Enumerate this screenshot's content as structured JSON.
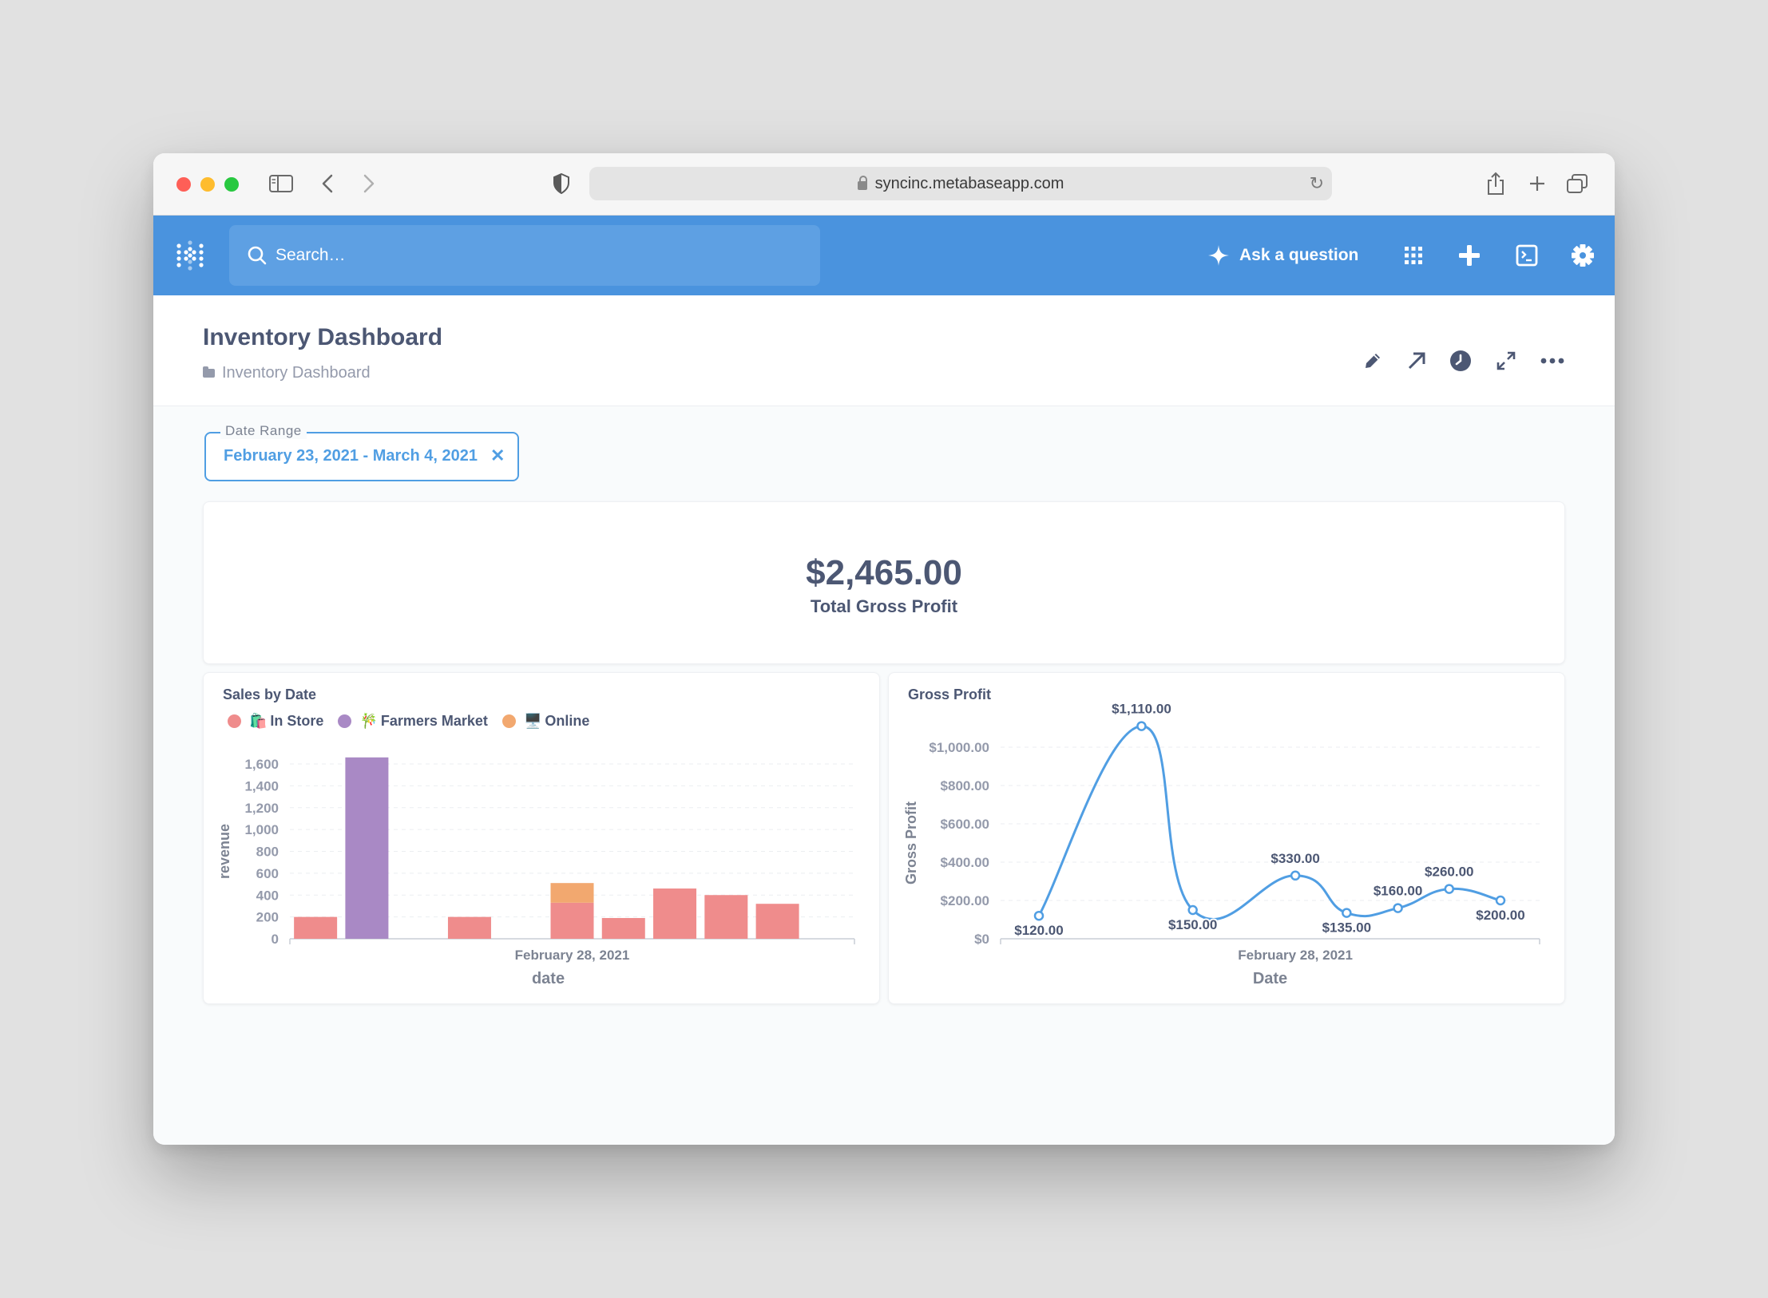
{
  "browser": {
    "url": "syncinc.metabaseapp.com",
    "icons": [
      "sidebar-icon",
      "back-icon",
      "forward-icon",
      "shield-icon",
      "lock-icon",
      "reload-icon",
      "share-icon",
      "new-tab-icon",
      "tabs-icon"
    ]
  },
  "navbar": {
    "search_placeholder": "Search…",
    "ask_label": "Ask a question",
    "accent": "#4a93de"
  },
  "header": {
    "title": "Inventory Dashboard",
    "breadcrumb": "Inventory Dashboard",
    "actions": [
      "pencil-icon",
      "arrow-up-right-icon",
      "clock-icon",
      "expand-icon",
      "more-icon"
    ]
  },
  "filter": {
    "label": "Date Range",
    "value": "February 23, 2021 - March 4, 2021"
  },
  "scalar": {
    "value": "$2,465.00",
    "label": "Total Gross Profit"
  },
  "chart_data": [
    {
      "type": "bar",
      "stacked": true,
      "title": "Sales by Date",
      "xlabel": "date",
      "ylabel": "revenue",
      "ylim": [
        0,
        1600
      ],
      "yticks": [
        "0",
        "200",
        "400",
        "600",
        "800",
        "1,000",
        "1,200",
        "1,400",
        "1,600"
      ],
      "x_ticks": [
        "February 28, 2021"
      ],
      "grid": true,
      "legend_position": "top-left",
      "categories": [
        "2021-02-23",
        "2021-02-24",
        "2021-02-25",
        "2021-02-26",
        "2021-02-27",
        "2021-02-28",
        "2021-03-01",
        "2021-03-02",
        "2021-03-03",
        "2021-03-04",
        "2021-03-05"
      ],
      "series": [
        {
          "name": "In Store",
          "emoji": "🛍️",
          "color": "#ef8c8c",
          "values": [
            200,
            0,
            0,
            200,
            0,
            330,
            190,
            460,
            400,
            320,
            0
          ]
        },
        {
          "name": "Farmers Market",
          "emoji": "🎋",
          "color": "#a989c5",
          "values": [
            0,
            1660,
            0,
            0,
            0,
            0,
            0,
            0,
            0,
            0,
            0
          ]
        },
        {
          "name": "Online",
          "emoji": "🖥️",
          "color": "#f2a86f",
          "values": [
            0,
            0,
            0,
            0,
            0,
            180,
            0,
            0,
            0,
            0,
            0
          ]
        }
      ]
    },
    {
      "type": "line",
      "title": "Gross Profit",
      "xlabel": "Date",
      "ylabel": "Gross Profit",
      "ylim": [
        0,
        1000
      ],
      "yticks": [
        "$0",
        "$200.00",
        "$400.00",
        "$600.00",
        "$800.00",
        "$1,000.00"
      ],
      "x_ticks": [
        "February 28, 2021"
      ],
      "grid": true,
      "series": [
        {
          "name": "Gross Profit",
          "color": "#509ee3",
          "x": [
            "2021-02-23",
            "2021-02-25",
            "2021-02-26",
            "2021-02-28",
            "2021-03-01",
            "2021-03-02",
            "2021-03-03",
            "2021-03-04"
          ],
          "values": [
            120,
            1110,
            150,
            330,
            135,
            160,
            260,
            200
          ],
          "labels": [
            "$120.00",
            "$1,110.00",
            "$150.00",
            "$330.00",
            "$135.00",
            "$160.00",
            "$260.00",
            "$200.00"
          ]
        }
      ]
    }
  ]
}
